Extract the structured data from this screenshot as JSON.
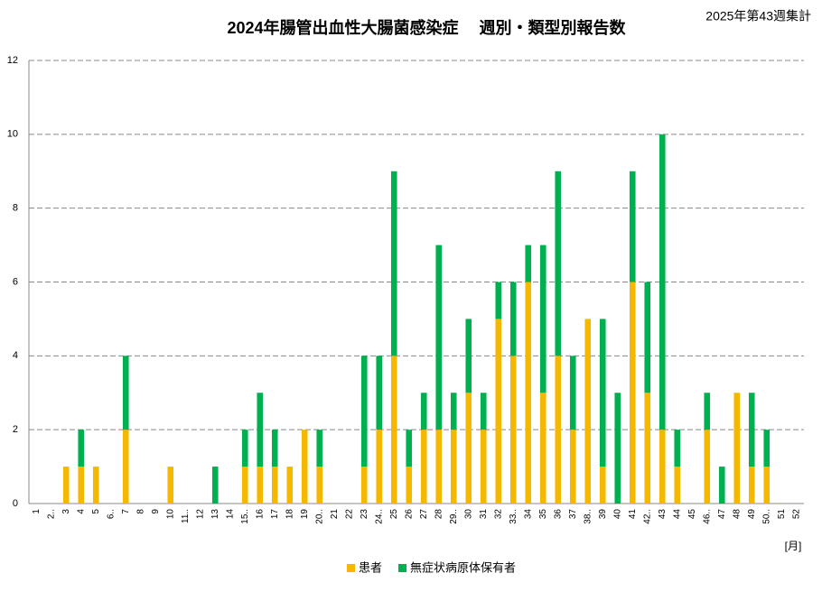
{
  "chart_data": {
    "type": "stacked-bar",
    "title": "2024年腸管出血性大腸菌感染症　 週別・類型別報告数",
    "subtitle": "2025年第43週集計",
    "x_label": "[月]",
    "categories": [
      "1",
      "2..",
      "3",
      "4",
      "5",
      "6..",
      "7",
      "8",
      "9",
      "10",
      "11..",
      "12",
      "13",
      "14",
      "15..",
      "16",
      "17",
      "18",
      "19",
      "20..",
      "21",
      "22",
      "23",
      "24..",
      "25",
      "26",
      "27",
      "28",
      "29..",
      "30",
      "31",
      "32",
      "33..",
      "34",
      "35",
      "36",
      "37",
      "38..",
      "39",
      "40",
      "41",
      "42..",
      "43",
      "44",
      "45",
      "46..",
      "47",
      "48",
      "49",
      "50..",
      "51",
      "52"
    ],
    "series": [
      {
        "name": "患者",
        "color": "#f5b800",
        "values": [
          0,
          0,
          1,
          1,
          1,
          0,
          2,
          0,
          0,
          1,
          0,
          0,
          0,
          0,
          1,
          1,
          1,
          1,
          2,
          1,
          0,
          0,
          1,
          2,
          4,
          1,
          2,
          2,
          2,
          3,
          2,
          5,
          4,
          6,
          3,
          4,
          2,
          5,
          1,
          0,
          6,
          3,
          2,
          1,
          0,
          2,
          0,
          3,
          1,
          1,
          0,
          0
        ]
      },
      {
        "name": "無症状病原体保有者",
        "color": "#00b050",
        "values": [
          0,
          0,
          0,
          1,
          0,
          0,
          2,
          0,
          0,
          0,
          0,
          0,
          1,
          0,
          1,
          2,
          1,
          0,
          0,
          1,
          0,
          0,
          3,
          2,
          5,
          1,
          1,
          5,
          1,
          2,
          1,
          1,
          2,
          1,
          4,
          5,
          2,
          0,
          4,
          3,
          3,
          3,
          8,
          1,
          0,
          1,
          1,
          0,
          2,
          1,
          0,
          0
        ]
      }
    ],
    "ylim": [
      0,
      12
    ],
    "yticks": [
      0,
      2,
      4,
      6,
      8,
      10,
      12
    ],
    "grid": true,
    "legend": "bottom"
  }
}
